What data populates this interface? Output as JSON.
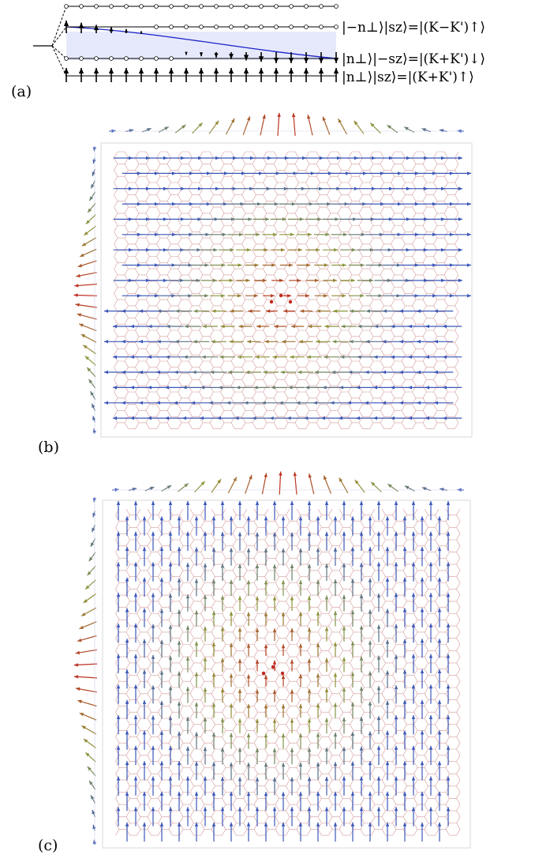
{
  "panels": {
    "a": {
      "label": "(a)",
      "states": [
        "|−n⊥⟩|sz⟩=|(K−K')↑⟩",
        "|n⊥⟩|−sz⟩=|(K+K')↓⟩",
        "|n⊥⟩|sz⟩=|(K+K')↑⟩"
      ]
    },
    "b": {
      "label": "(b)"
    },
    "c": {
      "label": "(c)"
    }
  },
  "colors": {
    "arrow_low": "#3b57b8",
    "arrow_mid": "#8c9a3c",
    "arrow_high": "#c0281e",
    "lattice_edge": "#d49a9a",
    "lattice_node": "#7a72d0",
    "blue_line": "#1a22c8",
    "shade": "#e6e9fb"
  }
}
